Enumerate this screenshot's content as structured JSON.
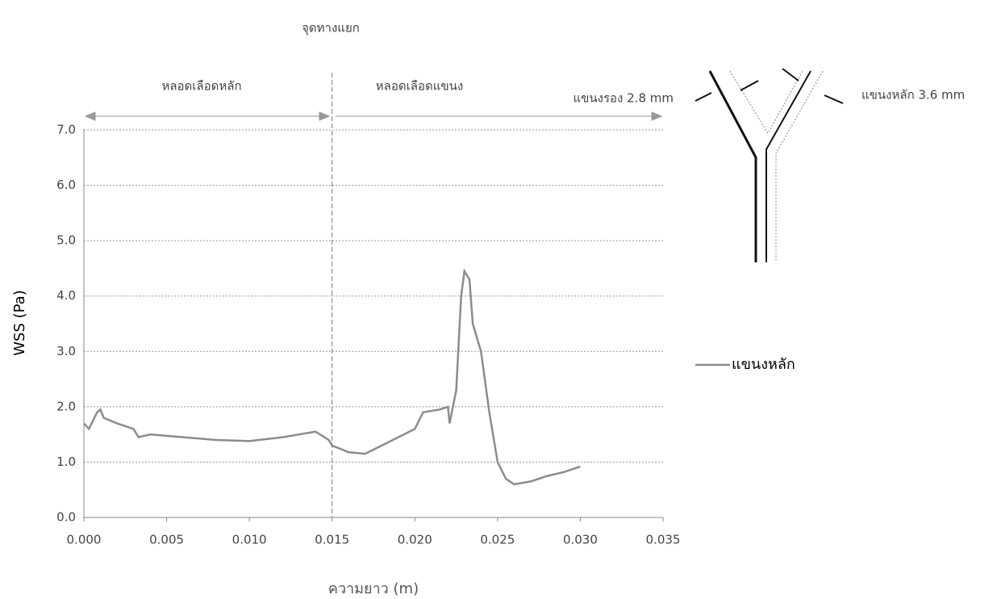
{
  "chart_data": {
    "type": "line",
    "x_label": "ความยาว (m)",
    "y_label": "WSS (Pa)",
    "annotations": {
      "junction_label": "จุดทางแยก",
      "main_vessel": "หลอดเลือดหลัก",
      "branch_vessel": "หลอดเลือดแขนง",
      "minor_branch": "แขนงรอง 2.8 mm",
      "major_branch": "แขนงหลัก 3.6 mm",
      "junction_x": 0.015
    },
    "x": [
      0,
      0.0003,
      0.0008,
      0.001,
      0.0012,
      0.002,
      0.003,
      0.0033,
      0.004,
      0.006,
      0.008,
      0.01,
      0.012,
      0.014,
      0.0148,
      0.015,
      0.016,
      0.017,
      0.018,
      0.019,
      0.02,
      0.0205,
      0.0215,
      0.022,
      0.0221,
      0.0225,
      0.0228,
      0.023,
      0.0233,
      0.0235,
      0.024,
      0.0245,
      0.025,
      0.0255,
      0.026,
      0.027,
      0.028,
      0.029,
      0.03
    ],
    "series": [
      {
        "name": "แขนงหลัก",
        "color": "#8c8c8c",
        "values": [
          1.7,
          1.6,
          1.9,
          1.95,
          1.8,
          1.7,
          1.6,
          1.45,
          1.5,
          1.45,
          1.4,
          1.38,
          1.45,
          1.55,
          1.4,
          1.3,
          1.18,
          1.15,
          1.3,
          1.45,
          1.6,
          1.9,
          1.95,
          2.0,
          1.7,
          2.3,
          4.0,
          4.45,
          4.3,
          3.5,
          3.0,
          1.9,
          1.0,
          0.7,
          0.6,
          0.65,
          0.75,
          0.82,
          0.92
        ]
      }
    ],
    "xlim": [
      0,
      0.035
    ],
    "xticks": [
      {
        "value": 0,
        "label": "0.000"
      },
      {
        "value": 0.005,
        "label": "0.005"
      },
      {
        "value": 0.01,
        "label": "0.010"
      },
      {
        "value": 0.015,
        "label": "0.015"
      },
      {
        "value": 0.02,
        "label": "0.020"
      },
      {
        "value": 0.025,
        "label": "0.025"
      },
      {
        "value": 0.03,
        "label": "0.030"
      },
      {
        "value": 0.035,
        "label": "0.035"
      }
    ],
    "ylim": [
      0,
      7
    ],
    "yticks": [
      {
        "value": 0,
        "label": "0.0"
      },
      {
        "value": 1,
        "label": "1.0"
      },
      {
        "value": 2,
        "label": "2.0"
      },
      {
        "value": 3,
        "label": "3.0"
      },
      {
        "value": 4,
        "label": "4.0"
      },
      {
        "value": 5,
        "label": "5.0"
      },
      {
        "value": 6,
        "label": "6.0"
      },
      {
        "value": 7,
        "label": "7.0"
      }
    ],
    "grid": true
  }
}
